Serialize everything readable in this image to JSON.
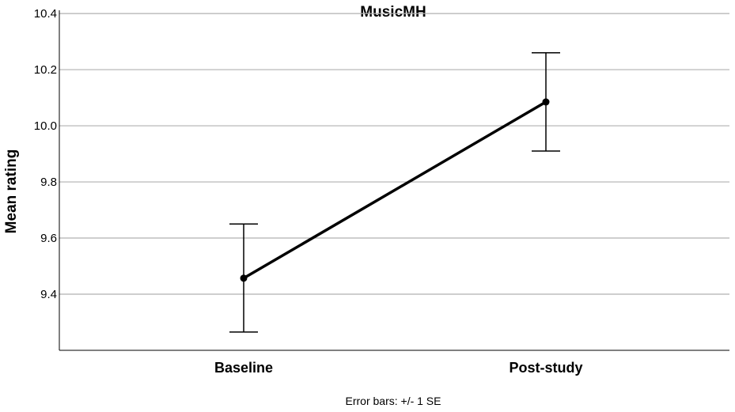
{
  "chart_data": {
    "type": "line",
    "title": "MusicMH",
    "xlabel": "",
    "ylabel": "Mean rating",
    "categories": [
      "Baseline",
      "Post-study"
    ],
    "series": [
      {
        "values": [
          9.457,
          10.085
        ],
        "error_low": [
          9.265,
          9.91
        ],
        "error_high": [
          9.65,
          10.26
        ]
      }
    ],
    "ylim": [
      9.2,
      10.42
    ],
    "yticks": [
      "9.4",
      "9.6",
      "9.8",
      "10.0",
      "10.2",
      "10.4"
    ],
    "grid": true,
    "note": "Error bars: +/- 1 SE",
    "line_color": "#000000",
    "grid_color": "#b0b0b0"
  }
}
